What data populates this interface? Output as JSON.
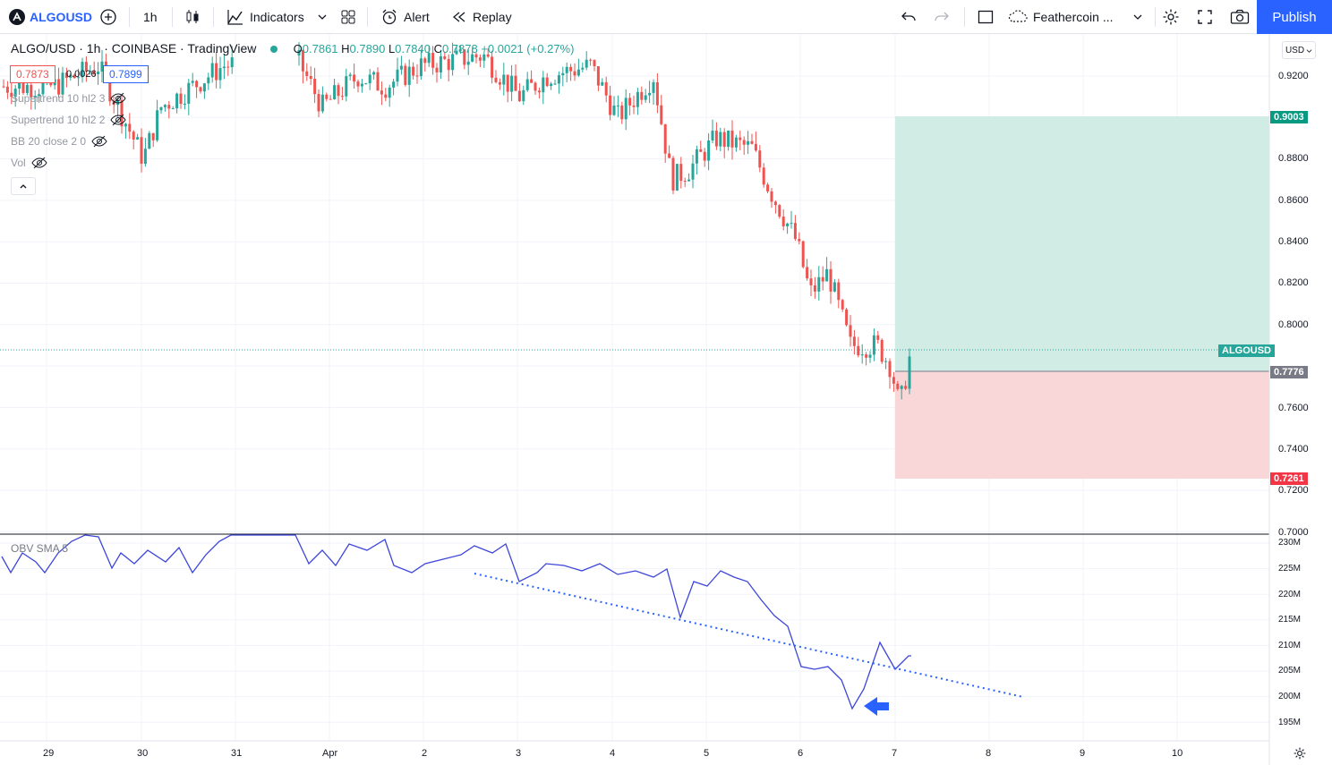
{
  "toolbar": {
    "symbol": "ALGOUSD",
    "interval": "1h",
    "indicators_label": "Indicators",
    "alert_label": "Alert",
    "replay_label": "Replay",
    "layout_name": "Feathercoin ...",
    "publish_label": "Publish"
  },
  "legend": {
    "title": "ALGO/USD · 1h · COINBASE · TradingView",
    "open_label": "O",
    "open": "0.7861",
    "high_label": "H",
    "high": "0.7890",
    "low_label": "L",
    "low": "0.7840",
    "close_label": "C",
    "close": "0.7878",
    "change": "+0.0021 (+0.27%)",
    "sell_price": "0.7873",
    "spread": "0.0026",
    "buy_price": "0.7899"
  },
  "indicators": [
    {
      "label": "Supertrend 10 hl2 3"
    },
    {
      "label": "Supertrend 10 hl2 2"
    },
    {
      "label": "BB 20 close 2 0"
    },
    {
      "label": "Vol"
    }
  ],
  "obv_label": "OBV SMA 5",
  "currency": "USD",
  "price_axis": [
    "0.9200",
    "0.9000",
    "0.8800",
    "0.8600",
    "0.8400",
    "0.8200",
    "0.8000",
    "0.7800",
    "0.7600",
    "0.7400",
    "0.7200",
    "0.7000"
  ],
  "obv_axis": [
    "230M",
    "225M",
    "220M",
    "215M",
    "210M",
    "205M",
    "200M",
    "195M"
  ],
  "time_axis": [
    "29",
    "30",
    "31",
    "Apr",
    "2",
    "3",
    "4",
    "5",
    "6",
    "7",
    "8",
    "9",
    "10"
  ],
  "tags": {
    "target": "0.9003",
    "symbol": "ALGOUSD",
    "entry": "0.7776",
    "stop": "0.7261"
  },
  "colors": {
    "up": "#26a69a",
    "down": "#ef5350",
    "obv_line": "#3d46d9",
    "trend_line": "#2962ff",
    "profit_zone": "#d1ebe5",
    "loss_zone": "#f9d6d8",
    "accent": "#2962ff"
  }
}
